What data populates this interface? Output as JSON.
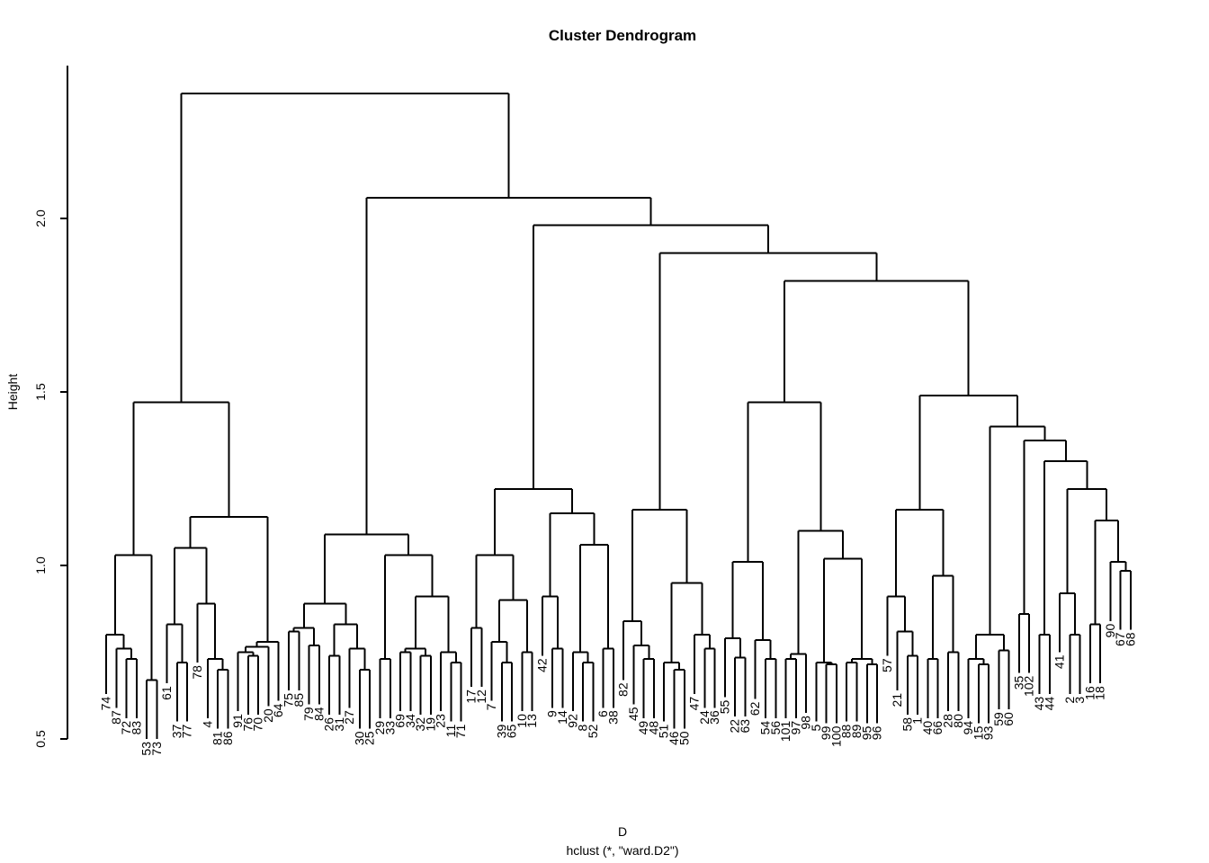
{
  "title": "Cluster Dendrogram",
  "y_axis": {
    "label": "Height",
    "ticks": [
      "0.5",
      "1.0",
      "1.5",
      "2.0"
    ],
    "tick_values": [
      0.5,
      1.0,
      1.5,
      2.0
    ]
  },
  "footer": {
    "xlab": "D",
    "sub": "hclust (*, \"ward.D2\")"
  },
  "colors": {
    "line": "#000000",
    "text": "#000000",
    "background": "#ffffff"
  },
  "chart_data": {
    "type": "dendrogram",
    "method": "ward.D2",
    "n_leaves": 102,
    "ylim": [
      0.5,
      2.44
    ],
    "root_height": 2.36,
    "hang_drop": 0.17,
    "grid": false,
    "leaf_order": [
      "74",
      "87",
      "72",
      "83",
      "53",
      "73",
      "61",
      "37",
      "77",
      "78",
      "4",
      "81",
      "86",
      "91",
      "76",
      "70",
      "20",
      "64",
      "75",
      "85",
      "79",
      "84",
      "26",
      "31",
      "27",
      "30",
      "25",
      "29",
      "33",
      "69",
      "34",
      "32",
      "19",
      "23",
      "11",
      "71",
      "17",
      "12",
      "7",
      "39",
      "65",
      "10",
      "13",
      "42",
      "9",
      "14",
      "92",
      "8",
      "52",
      "6",
      "38",
      "82",
      "45",
      "49",
      "48",
      "51",
      "46",
      "50",
      "47",
      "24",
      "36",
      "55",
      "22",
      "63",
      "62",
      "54",
      "56",
      "101",
      "97",
      "98",
      "5",
      "99",
      "100",
      "88",
      "89",
      "95",
      "96",
      "57",
      "21",
      "58",
      "1",
      "40",
      "66",
      "28",
      "80",
      "94",
      "15",
      "93",
      "59",
      "60",
      "35",
      "102",
      "43",
      "44",
      "41",
      "2",
      "3",
      "16",
      "18",
      "90",
      "67",
      "68"
    ],
    "tree": [
      2.36,
      [
        1.47,
        [
          1.03,
          [
            0.8,
            "74",
            [
              0.76,
              "87",
              [
                0.73,
                "72",
                "83"
              ]
            ]
          ],
          [
            0.67,
            "53",
            "73"
          ]
        ],
        [
          1.14,
          [
            1.05,
            [
              0.83,
              "61",
              [
                0.72,
                "37",
                "77"
              ]
            ],
            [
              0.89,
              "78",
              [
                0.73,
                "4",
                [
                  0.7,
                  "81",
                  "86"
                ]
              ]
            ]
          ],
          [
            0.78,
            [
              0.765,
              [
                0.75,
                "91",
                [
                  0.74,
                  "76",
                  "70"
                ]
              ],
              "20"
            ],
            "64"
          ]
        ]
      ],
      [
        2.06,
        [
          1.09,
          [
            0.89,
            [
              0.82,
              [
                0.81,
                "75",
                "85"
              ],
              [
                0.77,
                "79",
                "84"
              ]
            ],
            [
              0.83,
              [
                0.74,
                "26",
                "31"
              ],
              [
                0.76,
                "27",
                [
                  0.7,
                  "30",
                  "25"
                ]
              ]
            ]
          ],
          [
            1.03,
            [
              0.73,
              "29",
              "33"
            ],
            [
              0.91,
              [
                0.76,
                [
                  0.75,
                  "69",
                  "34"
                ],
                [
                  0.74,
                  "32",
                  "19"
                ]
              ],
              [
                0.75,
                "23",
                [
                  0.72,
                  "11",
                  "71"
                ]
              ]
            ]
          ]
        ],
        [
          1.98,
          [
            1.22,
            [
              1.03,
              [
                0.82,
                "17",
                "12"
              ],
              [
                0.9,
                [
                  0.78,
                  "7",
                  [
                    0.72,
                    "39",
                    "65"
                  ]
                ],
                [
                  0.75,
                  "10",
                  "13"
                ]
              ]
            ],
            [
              1.15,
              [
                0.91,
                "42",
                [
                  0.76,
                  "9",
                  "14"
                ]
              ],
              [
                1.06,
                [
                  0.75,
                  "92",
                  [
                    0.72,
                    "8",
                    "52"
                  ]
                ],
                [
                  0.76,
                  "6",
                  "38"
                ]
              ]
            ]
          ],
          [
            1.9,
            [
              1.16,
              [
                0.84,
                "82",
                [
                  0.77,
                  "45",
                  [
                    0.73,
                    "49",
                    "48"
                  ]
                ]
              ],
              [
                0.95,
                [
                  0.72,
                  "51",
                  [
                    0.7,
                    "46",
                    "50"
                  ]
                ],
                [
                  0.8,
                  "47",
                  [
                    0.76,
                    "24",
                    "36"
                  ]
                ]
              ]
            ],
            [
              1.82,
              [
                1.47,
                [
                  1.01,
                  [
                    0.79,
                    "55",
                    [
                      0.735,
                      "22",
                      "63"
                    ]
                  ],
                  [
                    0.785,
                    "62",
                    [
                      0.73,
                      "54",
                      "56"
                    ]
                  ]
                ],
                [
                  1.1,
                  [
                    0.745,
                    [
                      0.73,
                      "101",
                      "97"
                    ],
                    "98"
                  ],
                  [
                    1.02,
                    [
                      0.72,
                      "5",
                      [
                        0.715,
                        "99",
                        "100"
                      ]
                    ],
                    [
                      0.73,
                      [
                        0.72,
                        "88",
                        "89"
                      ],
                      [
                        0.715,
                        "95",
                        "96"
                      ]
                    ]
                  ]
                ]
              ],
              [
                1.49,
                [
                  1.16,
                  [
                    0.91,
                    "57",
                    [
                      0.81,
                      "21",
                      [
                        0.74,
                        "58",
                        "1"
                      ]
                    ]
                  ],
                  [
                    0.97,
                    [
                      0.73,
                      "40",
                      "66"
                    ],
                    [
                      0.75,
                      "28",
                      "80"
                    ]
                  ]
                ],
                [
                  1.4,
                  [
                    0.8,
                    [
                      0.73,
                      "94",
                      [
                        0.715,
                        "15",
                        "93"
                      ]
                    ],
                    [
                      0.755,
                      "59",
                      "60"
                    ]
                  ],
                  [
                    1.36,
                    [
                      0.86,
                      "35",
                      "102"
                    ],
                    [
                      1.3,
                      [
                        0.8,
                        "43",
                        "44"
                      ],
                      [
                        1.22,
                        [
                          0.92,
                          "41",
                          [
                            0.8,
                            "2",
                            "3"
                          ]
                        ],
                        [
                          1.13,
                          [
                            0.83,
                            "16",
                            "18"
                          ],
                          [
                            1.01,
                            "90",
                            [
                              0.985,
                              "67",
                              "68"
                            ]
                          ]
                        ]
                      ]
                    ]
                  ]
                ]
              ]
            ]
          ]
        ]
      ]
    ]
  }
}
